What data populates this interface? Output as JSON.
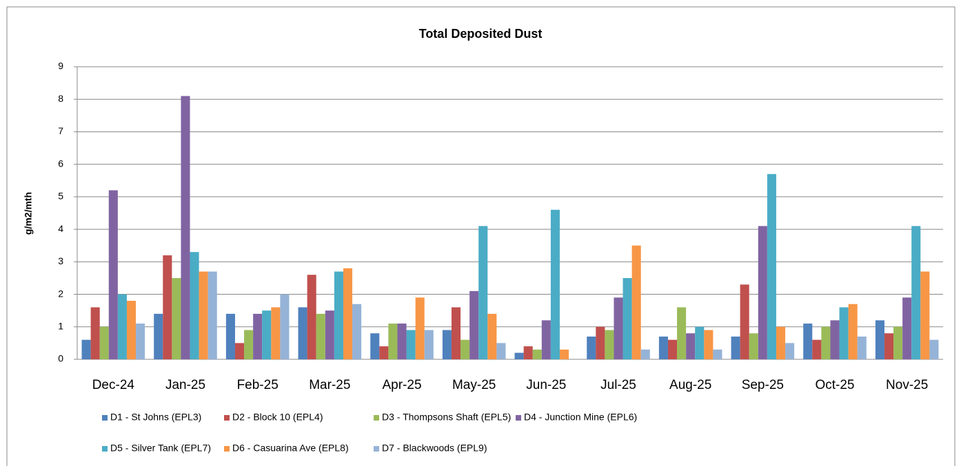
{
  "chart_data": {
    "type": "bar",
    "title": "Total Deposited Dust",
    "y_label": "g/m2/mth",
    "categories": [
      "Dec-24",
      "Jan-25",
      "Feb-25",
      "Mar-25",
      "Apr-25",
      "May-25",
      "Jun-25",
      "Jul-25",
      "Aug-25",
      "Sep-25",
      "Oct-25",
      "Nov-25"
    ],
    "series": [
      {
        "name": "D1 - St Johns (EPL3)",
        "color": "#4f81bd",
        "values": [
          0.6,
          1.4,
          1.4,
          1.6,
          0.8,
          0.9,
          0.2,
          0.7,
          0.7,
          0.7,
          1.1,
          1.2
        ]
      },
      {
        "name": "D2 - Block 10 (EPL4)",
        "color": "#c0504d",
        "values": [
          1.6,
          3.2,
          0.5,
          2.6,
          0.4,
          1.6,
          0.4,
          1.0,
          0.6,
          2.3,
          0.6,
          0.8
        ]
      },
      {
        "name": "D3 - Thompsons Shaft (EPL5)",
        "color": "#9bbb59",
        "values": [
          1.0,
          2.5,
          0.9,
          1.4,
          1.1,
          0.6,
          0.3,
          0.9,
          1.6,
          0.8,
          1.0,
          1.0
        ]
      },
      {
        "name": "D4 - Junction Mine (EPL6)",
        "color": "#8064a2",
        "values": [
          5.2,
          8.1,
          1.4,
          1.5,
          1.1,
          2.1,
          1.2,
          1.9,
          0.8,
          4.1,
          1.2,
          1.9
        ]
      },
      {
        "name": "D5 - Silver Tank (EPL7)",
        "color": "#4bacc6",
        "values": [
          2.0,
          3.3,
          1.5,
          2.7,
          0.9,
          4.1,
          4.6,
          2.5,
          1.0,
          5.7,
          1.6,
          4.1
        ]
      },
      {
        "name": "D6 - Casuarina Ave (EPL8)",
        "color": "#f79646",
        "values": [
          1.8,
          2.7,
          1.6,
          2.8,
          1.9,
          1.4,
          0.3,
          3.5,
          0.9,
          1.0,
          1.7,
          2.7
        ]
      },
      {
        "name": "D7 - Blackwoods (EPL9)",
        "color": "#95b3d7",
        "values": [
          1.1,
          2.7,
          2.0,
          1.7,
          0.9,
          0.5,
          null,
          0.3,
          0.3,
          0.5,
          0.7,
          0.6
        ]
      }
    ],
    "ylim": [
      0,
      9
    ],
    "yticks": [
      0,
      1,
      2,
      3,
      4,
      5,
      6,
      7,
      8,
      9
    ],
    "grid": true
  }
}
